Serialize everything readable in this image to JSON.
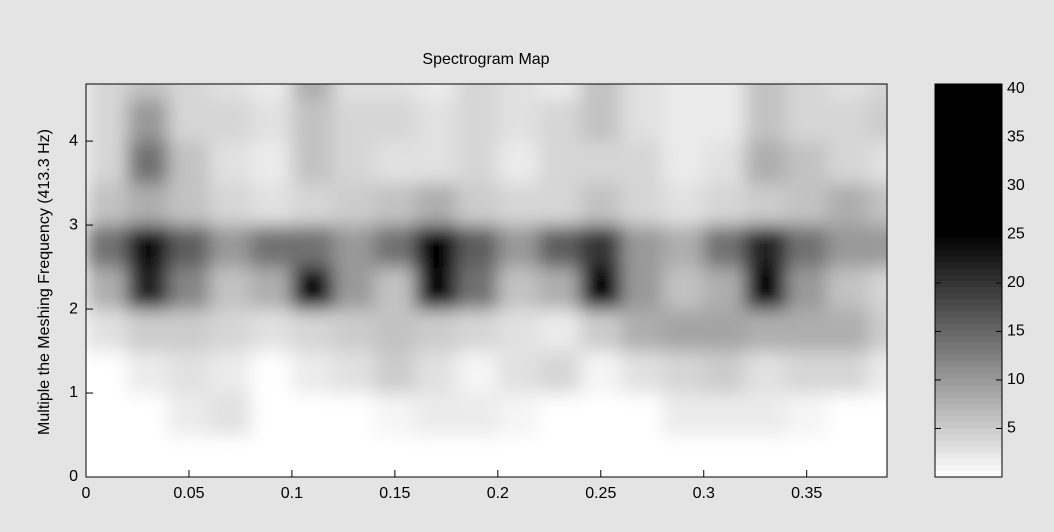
{
  "chart_data": {
    "type": "heatmap",
    "title": "Spectrogram  Map",
    "y_label": "Multiple the Meshing Frequency (413.3 Hz)",
    "x": [
      0.01,
      0.03,
      0.05,
      0.07,
      0.09,
      0.11,
      0.13,
      0.15,
      0.17,
      0.19,
      0.21,
      0.23,
      0.25,
      0.27,
      0.29,
      0.31,
      0.33,
      0.35,
      0.37,
      0.39
    ],
    "y": [
      0.25,
      0.75,
      1.25,
      1.75,
      2.25,
      2.75,
      3.25,
      3.75,
      4.25,
      4.75
    ],
    "z": [
      [
        0,
        0,
        0,
        0,
        0,
        0,
        0,
        0,
        0,
        0,
        0,
        0,
        0,
        0,
        0,
        0,
        0,
        0,
        0,
        0
      ],
      [
        0,
        0,
        2,
        3,
        0,
        0,
        0,
        1,
        2,
        2,
        1,
        0,
        0,
        0,
        2,
        2,
        2,
        1,
        0,
        0
      ],
      [
        0,
        2,
        3,
        2,
        0,
        2,
        3,
        5,
        3,
        1,
        3,
        4,
        1,
        3,
        4,
        5,
        3,
        4,
        4,
        2
      ],
      [
        3,
        5,
        5,
        4,
        3,
        4,
        5,
        6,
        5,
        4,
        3,
        2,
        5,
        8,
        9,
        9,
        8,
        8,
        8,
        5
      ],
      [
        8,
        22,
        12,
        6,
        8,
        30,
        10,
        6,
        35,
        14,
        6,
        8,
        32,
        10,
        6,
        8,
        30,
        10,
        6,
        4
      ],
      [
        14,
        24,
        16,
        10,
        14,
        14,
        10,
        14,
        28,
        16,
        10,
        16,
        20,
        10,
        8,
        14,
        22,
        14,
        10,
        10
      ],
      [
        6,
        8,
        6,
        4,
        3,
        4,
        5,
        6,
        8,
        5,
        4,
        4,
        6,
        4,
        3,
        4,
        5,
        6,
        8,
        6
      ],
      [
        4,
        14,
        6,
        3,
        2,
        6,
        4,
        3,
        3,
        4,
        2,
        4,
        4,
        4,
        2,
        3,
        8,
        6,
        4,
        3
      ],
      [
        4,
        10,
        4,
        4,
        3,
        6,
        4,
        4,
        3,
        4,
        3,
        4,
        6,
        3,
        2,
        2,
        6,
        4,
        4,
        5
      ],
      [
        4,
        6,
        4,
        3,
        2,
        8,
        3,
        3,
        2,
        4,
        3,
        2,
        6,
        3,
        2,
        2,
        6,
        4,
        3,
        4
      ]
    ],
    "xlim": [
      0,
      0.389
    ],
    "xticks": [
      0,
      0.05,
      0.1,
      0.15,
      0.2,
      0.25,
      0.3,
      0.35
    ],
    "ylim": [
      0,
      4.68
    ],
    "yticks": [
      0,
      1,
      2,
      3,
      4
    ],
    "colorbar": {
      "clim": [
        0,
        40.5
      ],
      "ticks": [
        5,
        10,
        15,
        20,
        25,
        30,
        35,
        40
      ]
    }
  }
}
